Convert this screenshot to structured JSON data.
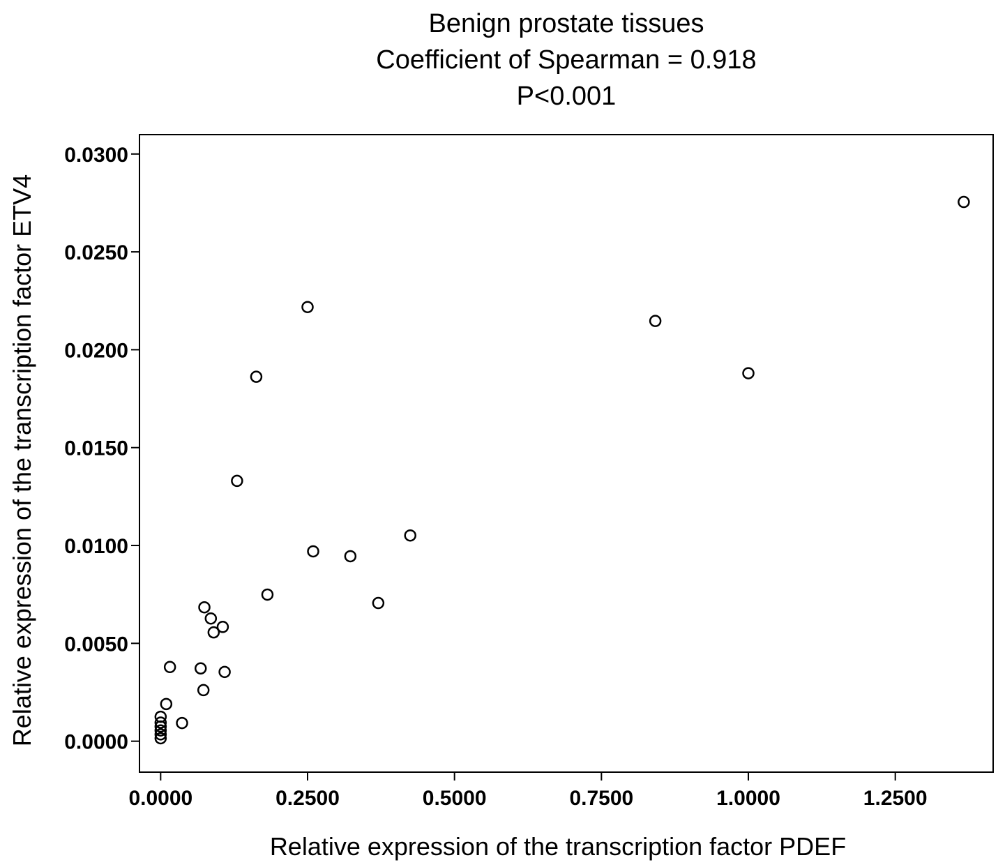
{
  "chart_data": {
    "type": "scatter",
    "title": "Benign prostate tissues",
    "subtitle": "Coefficient of Spearman = 0.918",
    "subtitle2": "P<0.001",
    "xlabel": "Relative expression of the transcription factor PDEF",
    "ylabel": "Relative expression of the transcription factor ETV4",
    "xlim": [
      -0.036,
      1.4165
    ],
    "ylim": [
      -0.00158,
      0.03099
    ],
    "x_ticks": [
      0.0,
      0.25,
      0.5,
      0.75,
      1.0,
      1.25
    ],
    "x_tick_labels": [
      "0.0000",
      "0.2500",
      "0.5000",
      "0.7500",
      "1.0000",
      "1.2500"
    ],
    "y_ticks": [
      0.0,
      0.005,
      0.01,
      0.015,
      0.02,
      0.025,
      0.03
    ],
    "y_tick_labels": [
      "0.0000",
      "0.0050",
      "0.0100",
      "0.0150",
      "0.0200",
      "0.0250",
      "0.0300"
    ],
    "grid": false,
    "legend": "none",
    "marker_color": "#000000",
    "points": [
      {
        "x": 1.3665,
        "y": 0.02755
      },
      {
        "x": 0.8417,
        "y": 0.02147
      },
      {
        "x": 1.0,
        "y": 0.0188
      },
      {
        "x": 0.25,
        "y": 0.02218
      },
      {
        "x": 0.1627,
        "y": 0.01862
      },
      {
        "x": 0.13,
        "y": 0.0133
      },
      {
        "x": 0.4247,
        "y": 0.01051
      },
      {
        "x": 0.2595,
        "y": 0.0097
      },
      {
        "x": 0.3228,
        "y": 0.00945
      },
      {
        "x": 0.1817,
        "y": 0.00749
      },
      {
        "x": 0.3703,
        "y": 0.00706
      },
      {
        "x": 0.0744,
        "y": 0.00684
      },
      {
        "x": 0.0854,
        "y": 0.00627
      },
      {
        "x": 0.1057,
        "y": 0.00584
      },
      {
        "x": 0.0902,
        "y": 0.00556
      },
      {
        "x": 0.0681,
        "y": 0.00372
      },
      {
        "x": 0.1089,
        "y": 0.00354
      },
      {
        "x": 0.0728,
        "y": 0.00261
      },
      {
        "x": 0.0158,
        "y": 0.00379
      },
      {
        "x": 0.0095,
        "y": 0.0019
      },
      {
        "x": 0.0364,
        "y": 0.00093
      },
      {
        "x": 0.0,
        "y": 0.00125
      },
      {
        "x": 0.0,
        "y": 0.00095
      },
      {
        "x": 0.0,
        "y": 0.00075
      },
      {
        "x": 0.0,
        "y": 0.00055
      },
      {
        "x": 0.0,
        "y": 0.00035
      },
      {
        "x": 0.0,
        "y": 0.00015
      }
    ]
  }
}
